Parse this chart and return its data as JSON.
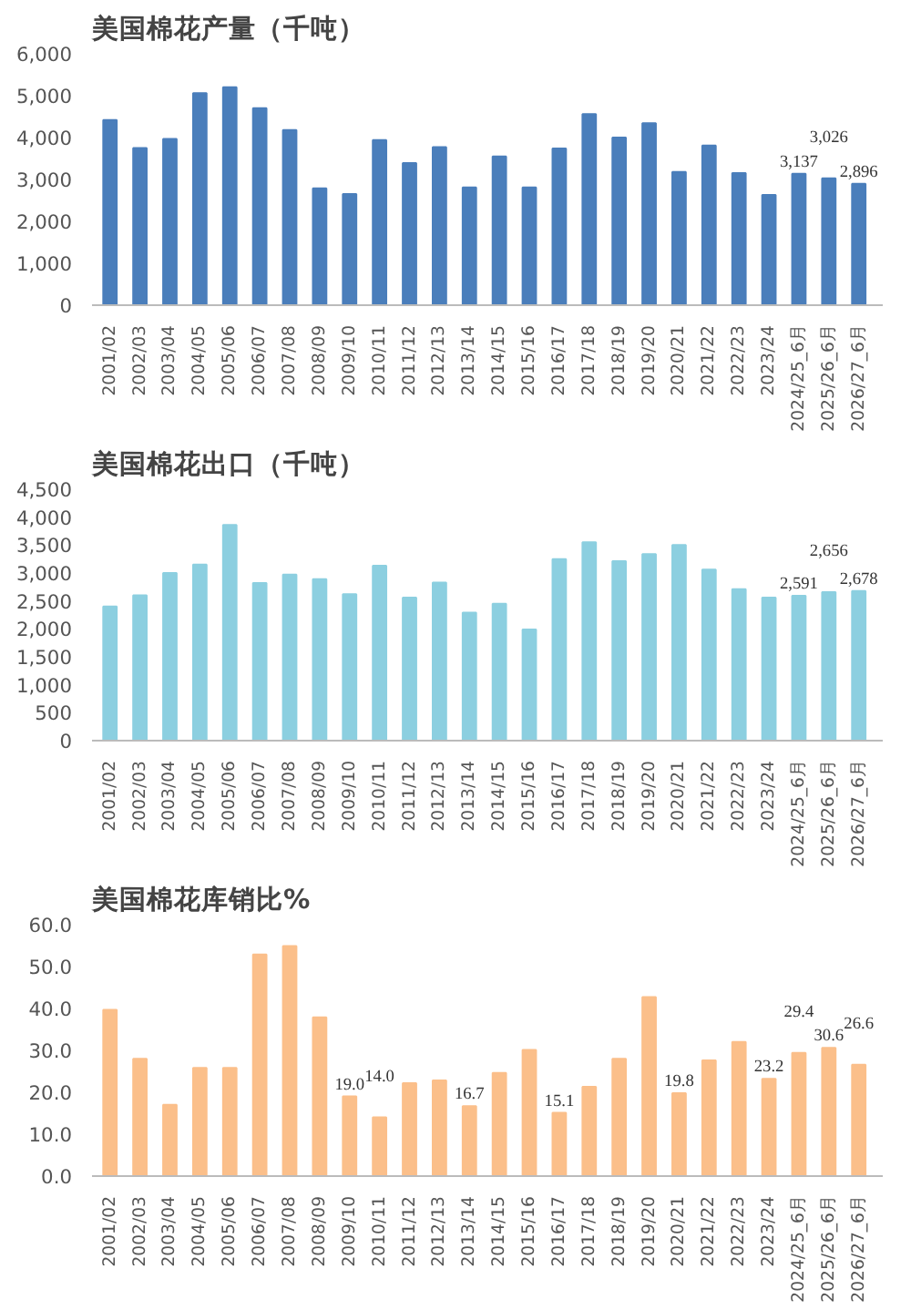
{
  "chart_data": [
    {
      "type": "bar",
      "title": "美国棉花产量（千吨）",
      "categories": [
        "2001/02",
        "2002/03",
        "2003/04",
        "2004/05",
        "2005/06",
        "2006/07",
        "2007/08",
        "2008/09",
        "2009/10",
        "2010/11",
        "2011/12",
        "2012/13",
        "2013/14",
        "2014/15",
        "2015/16",
        "2016/17",
        "2017/18",
        "2018/19",
        "2019/20",
        "2020/21",
        "2021/22",
        "2022/23",
        "2023/24",
        "2024/25_6月",
        "2025/26_6月",
        "2026/27_6月"
      ],
      "series": [
        {
          "color": "#4a7ebb",
          "values": [
            4420,
            3750,
            3970,
            5060,
            5200,
            4700,
            4180,
            2790,
            2650,
            3940,
            3390,
            3770,
            2810,
            3550,
            2810,
            3740,
            4560,
            4000,
            4340,
            3180,
            3810,
            3150,
            2630,
            3137,
            3026,
            2896
          ],
          "value_labels": [
            null,
            null,
            null,
            null,
            null,
            null,
            null,
            null,
            null,
            null,
            null,
            null,
            null,
            null,
            null,
            null,
            null,
            null,
            null,
            null,
            null,
            null,
            null,
            "3,137",
            "3,026",
            "2,896"
          ]
        }
      ],
      "ylim": [
        0,
        6000
      ],
      "yticks": [
        {
          "value": 0,
          "label": "0"
        },
        {
          "value": 1000,
          "label": "1,000"
        },
        {
          "value": 2000,
          "label": "2,000"
        },
        {
          "value": 3000,
          "label": "3,000"
        },
        {
          "value": 4000,
          "label": "4,000"
        },
        {
          "value": 5000,
          "label": "5,000"
        },
        {
          "value": 6000,
          "label": "6,000"
        }
      ],
      "grid": false
    },
    {
      "type": "bar",
      "title": "美国棉花出口（千吨）",
      "categories": [
        "2001/02",
        "2002/03",
        "2003/04",
        "2004/05",
        "2005/06",
        "2006/07",
        "2007/08",
        "2008/09",
        "2009/10",
        "2010/11",
        "2011/12",
        "2012/13",
        "2013/14",
        "2014/15",
        "2015/16",
        "2016/17",
        "2017/18",
        "2018/19",
        "2019/20",
        "2020/21",
        "2021/22",
        "2022/23",
        "2023/24",
        "2024/25_6月",
        "2025/26_6月",
        "2026/27_6月"
      ],
      "series": [
        {
          "color": "#8ccfe0",
          "values": [
            2400,
            2600,
            3000,
            3150,
            3860,
            2820,
            2970,
            2890,
            2620,
            3130,
            2560,
            2830,
            2290,
            2450,
            1990,
            3250,
            3550,
            3210,
            3340,
            3500,
            3060,
            2710,
            2560,
            2591,
            2656,
            2678
          ],
          "value_labels": [
            null,
            null,
            null,
            null,
            null,
            null,
            null,
            null,
            null,
            null,
            null,
            null,
            null,
            null,
            null,
            null,
            null,
            null,
            null,
            null,
            null,
            null,
            null,
            "2,591",
            "2,656",
            "2,678"
          ]
        }
      ],
      "ylim": [
        0,
        4500
      ],
      "yticks": [
        {
          "value": 0,
          "label": "0"
        },
        {
          "value": 500,
          "label": "500"
        },
        {
          "value": 1000,
          "label": "1,000"
        },
        {
          "value": 1500,
          "label": "1,500"
        },
        {
          "value": 2000,
          "label": "2,000"
        },
        {
          "value": 2500,
          "label": "2,500"
        },
        {
          "value": 3000,
          "label": "3,000"
        },
        {
          "value": 3500,
          "label": "3,500"
        },
        {
          "value": 4000,
          "label": "4,000"
        },
        {
          "value": 4500,
          "label": "4,500"
        }
      ],
      "grid": false
    },
    {
      "type": "bar",
      "title": "美国棉花库销比%",
      "categories": [
        "2001/02",
        "2002/03",
        "2003/04",
        "2004/05",
        "2005/06",
        "2006/07",
        "2007/08",
        "2008/09",
        "2009/10",
        "2010/11",
        "2011/12",
        "2012/13",
        "2013/14",
        "2014/15",
        "2015/16",
        "2016/17",
        "2017/18",
        "2018/19",
        "2019/20",
        "2020/21",
        "2021/22",
        "2022/23",
        "2023/24",
        "2024/25_6月",
        "2025/26_6月",
        "2026/27_6月"
      ],
      "series": [
        {
          "color": "#fbbf8a",
          "values": [
            39.7,
            28.0,
            17.0,
            25.8,
            25.8,
            52.9,
            54.9,
            37.9,
            19.0,
            14.0,
            22.2,
            22.8,
            16.7,
            24.6,
            30.1,
            15.1,
            21.3,
            28.0,
            42.7,
            19.8,
            27.6,
            32.0,
            23.2,
            29.4,
            30.6,
            26.6
          ],
          "value_labels": [
            null,
            null,
            null,
            null,
            null,
            null,
            null,
            null,
            "19.0",
            "14.0",
            null,
            null,
            "16.7",
            null,
            null,
            "15.1",
            null,
            null,
            null,
            "19.8",
            null,
            null,
            "23.2",
            "29.4",
            "30.6",
            "26.6"
          ]
        }
      ],
      "ylim": [
        0,
        60
      ],
      "yticks": [
        {
          "value": 0,
          "label": "0.0"
        },
        {
          "value": 10,
          "label": "10.0"
        },
        {
          "value": 20,
          "label": "20.0"
        },
        {
          "value": 30,
          "label": "30.0"
        },
        {
          "value": 40,
          "label": "40.0"
        },
        {
          "value": 50,
          "label": "50.0"
        },
        {
          "value": 60,
          "label": "60.0"
        }
      ],
      "grid": false
    }
  ]
}
